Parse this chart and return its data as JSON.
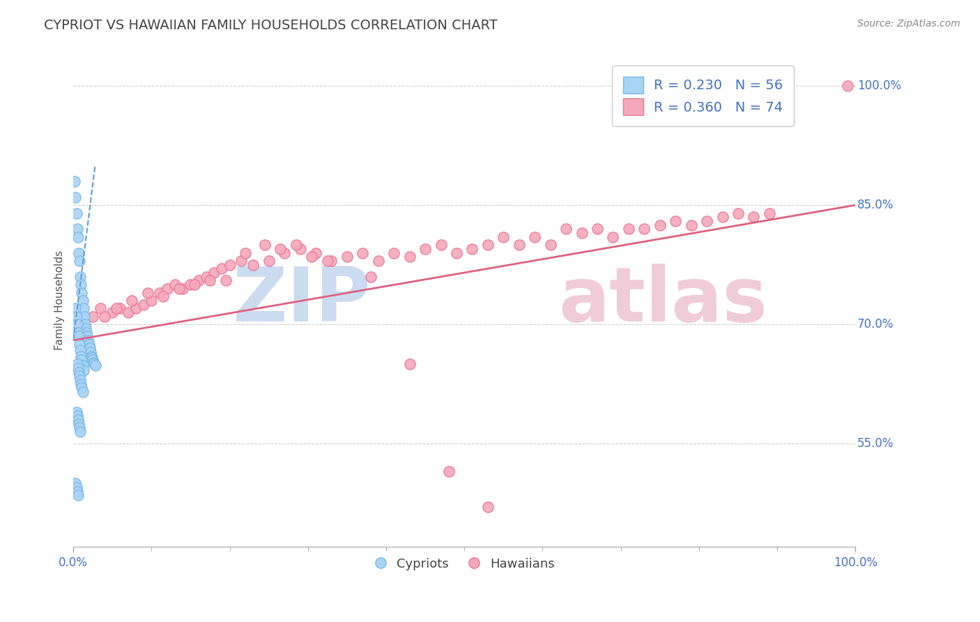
{
  "title": "CYPRIOT VS HAWAIIAN FAMILY HOUSEHOLDS CORRELATION CHART",
  "source": "Source: ZipAtlas.com",
  "ylabel": "Family Households",
  "cypriot_R": 0.23,
  "cypriot_N": 56,
  "hawaiian_R": 0.36,
  "hawaiian_N": 74,
  "cypriot_color": "#a8d4f5",
  "cypriot_edge": "#7ab8e8",
  "hawaiian_color": "#f5a8bc",
  "hawaiian_edge": "#e87898",
  "trend_cypriot_color": "#5b9bd5",
  "trend_hawaiian_color": "#e06080",
  "xlim": [
    0.0,
    1.0
  ],
  "ylim": [
    0.42,
    1.04
  ],
  "yticks": [
    0.55,
    0.7,
    0.85,
    1.0
  ],
  "ytick_labels": [
    "55.0%",
    "70.0%",
    "85.0%",
    "100.0%"
  ],
  "xtick_labels": [
    "0.0%",
    "100.0%"
  ],
  "background_color": "#ffffff",
  "grid_color": "#cccccc",
  "title_color": "#444444",
  "axis_color": "#4472c4",
  "watermark_color_1": "#ccdcf0",
  "watermark_color_2": "#f0ccd8",
  "cypriot_x": [
    0.002,
    0.003,
    0.004,
    0.005,
    0.006,
    0.007,
    0.008,
    0.009,
    0.01,
    0.011,
    0.012,
    0.013,
    0.014,
    0.015,
    0.016,
    0.017,
    0.018,
    0.019,
    0.02,
    0.021,
    0.022,
    0.023,
    0.024,
    0.025,
    0.026,
    0.027,
    0.028,
    0.003,
    0.004,
    0.005,
    0.006,
    0.007,
    0.008,
    0.009,
    0.01,
    0.011,
    0.012,
    0.013,
    0.005,
    0.006,
    0.007,
    0.008,
    0.009,
    0.01,
    0.011,
    0.012,
    0.004,
    0.005,
    0.006,
    0.007,
    0.008,
    0.009,
    0.003,
    0.004,
    0.005,
    0.006
  ],
  "cypriot_y": [
    0.88,
    0.86,
    0.84,
    0.82,
    0.81,
    0.79,
    0.78,
    0.76,
    0.75,
    0.74,
    0.73,
    0.72,
    0.71,
    0.7,
    0.695,
    0.69,
    0.685,
    0.68,
    0.675,
    0.67,
    0.665,
    0.66,
    0.658,
    0.655,
    0.652,
    0.65,
    0.648,
    0.72,
    0.71,
    0.7,
    0.69,
    0.685,
    0.675,
    0.668,
    0.66,
    0.655,
    0.648,
    0.642,
    0.65,
    0.645,
    0.64,
    0.635,
    0.63,
    0.625,
    0.62,
    0.615,
    0.59,
    0.585,
    0.58,
    0.575,
    0.57,
    0.565,
    0.5,
    0.495,
    0.49,
    0.485
  ],
  "hawaiian_x": [
    0.01,
    0.025,
    0.035,
    0.05,
    0.06,
    0.07,
    0.08,
    0.09,
    0.1,
    0.11,
    0.12,
    0.13,
    0.14,
    0.15,
    0.16,
    0.17,
    0.18,
    0.19,
    0.2,
    0.215,
    0.23,
    0.25,
    0.27,
    0.29,
    0.31,
    0.33,
    0.35,
    0.37,
    0.39,
    0.41,
    0.43,
    0.45,
    0.47,
    0.49,
    0.51,
    0.53,
    0.55,
    0.57,
    0.59,
    0.61,
    0.63,
    0.65,
    0.67,
    0.69,
    0.71,
    0.73,
    0.75,
    0.77,
    0.79,
    0.81,
    0.83,
    0.85,
    0.87,
    0.89,
    0.04,
    0.055,
    0.075,
    0.095,
    0.115,
    0.135,
    0.155,
    0.175,
    0.195,
    0.22,
    0.245,
    0.265,
    0.285,
    0.305,
    0.325,
    0.38,
    0.43,
    0.48,
    0.53,
    0.99
  ],
  "hawaiian_y": [
    0.695,
    0.71,
    0.72,
    0.715,
    0.72,
    0.715,
    0.72,
    0.725,
    0.73,
    0.74,
    0.745,
    0.75,
    0.745,
    0.75,
    0.755,
    0.76,
    0.765,
    0.77,
    0.775,
    0.78,
    0.775,
    0.78,
    0.79,
    0.795,
    0.79,
    0.78,
    0.785,
    0.79,
    0.78,
    0.79,
    0.785,
    0.795,
    0.8,
    0.79,
    0.795,
    0.8,
    0.81,
    0.8,
    0.81,
    0.8,
    0.82,
    0.815,
    0.82,
    0.81,
    0.82,
    0.82,
    0.825,
    0.83,
    0.825,
    0.83,
    0.835,
    0.84,
    0.835,
    0.84,
    0.71,
    0.72,
    0.73,
    0.74,
    0.735,
    0.745,
    0.75,
    0.755,
    0.755,
    0.79,
    0.8,
    0.795,
    0.8,
    0.785,
    0.78,
    0.76,
    0.65,
    0.515,
    0.47,
    1.0
  ],
  "trend_cy_x0": 0.0,
  "trend_cy_y0": 0.68,
  "trend_cy_x1": 0.028,
  "trend_cy_y1": 0.9,
  "trend_hw_x0": 0.0,
  "trend_hw_y0": 0.68,
  "trend_hw_x1": 1.0,
  "trend_hw_y1": 0.85
}
